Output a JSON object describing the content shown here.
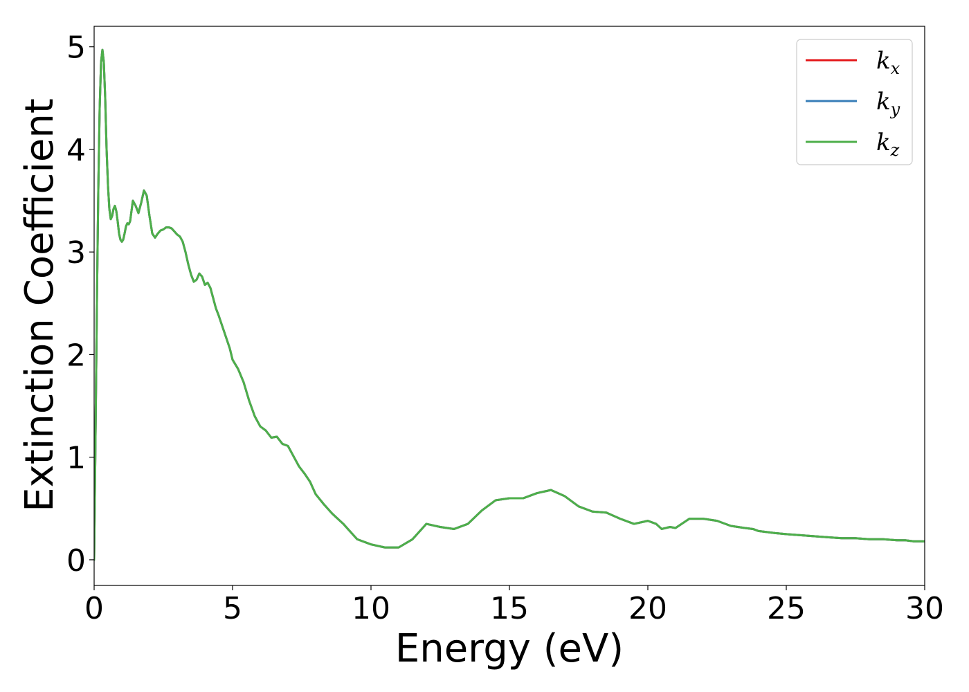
{
  "chart_data": {
    "type": "line",
    "title": "",
    "xlabel": "Energy (eV)",
    "ylabel": "Extinction Coefficient",
    "xlim": [
      0,
      30
    ],
    "ylim": [
      -0.25,
      5.2
    ],
    "xticks": [
      0,
      5,
      10,
      15,
      20,
      25,
      30
    ],
    "yticks": [
      0,
      1,
      2,
      3,
      4,
      5
    ],
    "grid": false,
    "legend_position": "top-right",
    "series": [
      {
        "name": "k",
        "subscript": "x",
        "color": "#e41a1c",
        "x": [
          0,
          0.05,
          0.1,
          0.15,
          0.2,
          0.25,
          0.3,
          0.35,
          0.4,
          0.45,
          0.5,
          0.55,
          0.6,
          0.65,
          0.7,
          0.75,
          0.8,
          0.85,
          0.9,
          0.95,
          1.0,
          1.05,
          1.1,
          1.15,
          1.2,
          1.25,
          1.3,
          1.35,
          1.4,
          1.5,
          1.6,
          1.7,
          1.8,
          1.9,
          2.0,
          2.1,
          2.2,
          2.3,
          2.4,
          2.5,
          2.6,
          2.7,
          2.8,
          2.9,
          3.0,
          3.1,
          3.2,
          3.3,
          3.4,
          3.5,
          3.6,
          3.7,
          3.8,
          3.9,
          4.0,
          4.1,
          4.2,
          4.3,
          4.4,
          4.5,
          4.6,
          4.7,
          4.8,
          4.9,
          5.0,
          5.2,
          5.4,
          5.6,
          5.8,
          6.0,
          6.2,
          6.4,
          6.6,
          6.8,
          7.0,
          7.2,
          7.4,
          7.6,
          7.8,
          8.0,
          8.3,
          8.6,
          9.0,
          9.5,
          10.0,
          10.5,
          11.0,
          11.5,
          12.0,
          12.5,
          13.0,
          13.5,
          14.0,
          14.5,
          15.0,
          15.5,
          16.0,
          16.5,
          17.0,
          17.5,
          18.0,
          18.5,
          19.0,
          19.5,
          20.0,
          20.3,
          20.5,
          20.8,
          21.0,
          21.5,
          22.0,
          22.5,
          23.0,
          23.5,
          23.8,
          24.0,
          24.3,
          24.6,
          25.0,
          25.5,
          26.0,
          26.5,
          27.0,
          27.5,
          28.0,
          28.5,
          29.0,
          29.3,
          29.6,
          30.0
        ],
        "values": [
          0.0,
          1.2,
          2.5,
          3.6,
          4.4,
          4.85,
          4.97,
          4.85,
          4.5,
          4.0,
          3.65,
          3.42,
          3.32,
          3.35,
          3.42,
          3.45,
          3.4,
          3.3,
          3.18,
          3.12,
          3.1,
          3.12,
          3.18,
          3.25,
          3.28,
          3.27,
          3.3,
          3.4,
          3.5,
          3.45,
          3.38,
          3.48,
          3.6,
          3.55,
          3.35,
          3.18,
          3.14,
          3.18,
          3.21,
          3.22,
          3.24,
          3.24,
          3.23,
          3.2,
          3.17,
          3.15,
          3.1,
          3.0,
          2.88,
          2.78,
          2.71,
          2.73,
          2.79,
          2.76,
          2.68,
          2.7,
          2.65,
          2.55,
          2.45,
          2.38,
          2.3,
          2.22,
          2.14,
          2.06,
          1.95,
          1.86,
          1.73,
          1.55,
          1.4,
          1.3,
          1.26,
          1.19,
          1.2,
          1.13,
          1.11,
          1.01,
          0.91,
          0.84,
          0.76,
          0.64,
          0.54,
          0.45,
          0.35,
          0.2,
          0.15,
          0.12,
          0.12,
          0.2,
          0.35,
          0.32,
          0.3,
          0.35,
          0.48,
          0.58,
          0.6,
          0.6,
          0.65,
          0.68,
          0.62,
          0.52,
          0.47,
          0.46,
          0.4,
          0.35,
          0.38,
          0.35,
          0.3,
          0.32,
          0.31,
          0.4,
          0.4,
          0.38,
          0.33,
          0.31,
          0.3,
          0.28,
          0.27,
          0.26,
          0.25,
          0.24,
          0.23,
          0.22,
          0.21,
          0.21,
          0.2,
          0.2,
          0.19,
          0.19,
          0.18,
          0.18
        ]
      },
      {
        "name": "k",
        "subscript": "y",
        "color": "#377eb8",
        "x": [
          0,
          0.05,
          0.1,
          0.15,
          0.2,
          0.25,
          0.3,
          0.35,
          0.4,
          0.45,
          0.5,
          0.55,
          0.6,
          0.65,
          0.7,
          0.75,
          0.8,
          0.85,
          0.9,
          0.95,
          1.0,
          1.05,
          1.1,
          1.15,
          1.2,
          1.25,
          1.3,
          1.35,
          1.4,
          1.5,
          1.6,
          1.7,
          1.8,
          1.9,
          2.0,
          2.1,
          2.2,
          2.3,
          2.4,
          2.5,
          2.6,
          2.7,
          2.8,
          2.9,
          3.0,
          3.1,
          3.2,
          3.3,
          3.4,
          3.5,
          3.6,
          3.7,
          3.8,
          3.9,
          4.0,
          4.1,
          4.2,
          4.3,
          4.4,
          4.5,
          4.6,
          4.7,
          4.8,
          4.9,
          5.0,
          5.2,
          5.4,
          5.6,
          5.8,
          6.0,
          6.2,
          6.4,
          6.6,
          6.8,
          7.0,
          7.2,
          7.4,
          7.6,
          7.8,
          8.0,
          8.3,
          8.6,
          9.0,
          9.5,
          10.0,
          10.5,
          11.0,
          11.5,
          12.0,
          12.5,
          13.0,
          13.5,
          14.0,
          14.5,
          15.0,
          15.5,
          16.0,
          16.5,
          17.0,
          17.5,
          18.0,
          18.5,
          19.0,
          19.5,
          20.0,
          20.3,
          20.5,
          20.8,
          21.0,
          21.5,
          22.0,
          22.5,
          23.0,
          23.5,
          23.8,
          24.0,
          24.3,
          24.6,
          25.0,
          25.5,
          26.0,
          26.5,
          27.0,
          27.5,
          28.0,
          28.5,
          29.0,
          29.3,
          29.6,
          30.0
        ],
        "values": [
          0.0,
          1.2,
          2.5,
          3.6,
          4.4,
          4.85,
          4.97,
          4.85,
          4.5,
          4.0,
          3.65,
          3.42,
          3.32,
          3.35,
          3.42,
          3.45,
          3.4,
          3.3,
          3.18,
          3.12,
          3.1,
          3.12,
          3.18,
          3.25,
          3.28,
          3.27,
          3.3,
          3.4,
          3.5,
          3.45,
          3.38,
          3.48,
          3.6,
          3.55,
          3.35,
          3.18,
          3.14,
          3.18,
          3.21,
          3.22,
          3.24,
          3.24,
          3.23,
          3.2,
          3.17,
          3.15,
          3.1,
          3.0,
          2.88,
          2.78,
          2.71,
          2.73,
          2.79,
          2.76,
          2.68,
          2.7,
          2.65,
          2.55,
          2.45,
          2.38,
          2.3,
          2.22,
          2.14,
          2.06,
          1.95,
          1.86,
          1.73,
          1.55,
          1.4,
          1.3,
          1.26,
          1.19,
          1.2,
          1.13,
          1.11,
          1.01,
          0.91,
          0.84,
          0.76,
          0.64,
          0.54,
          0.45,
          0.35,
          0.2,
          0.15,
          0.12,
          0.12,
          0.2,
          0.35,
          0.32,
          0.3,
          0.35,
          0.48,
          0.58,
          0.6,
          0.6,
          0.65,
          0.68,
          0.62,
          0.52,
          0.47,
          0.46,
          0.4,
          0.35,
          0.38,
          0.35,
          0.3,
          0.32,
          0.31,
          0.4,
          0.4,
          0.38,
          0.33,
          0.31,
          0.3,
          0.28,
          0.27,
          0.26,
          0.25,
          0.24,
          0.23,
          0.22,
          0.21,
          0.21,
          0.2,
          0.2,
          0.19,
          0.19,
          0.18,
          0.18
        ]
      },
      {
        "name": "k",
        "subscript": "z",
        "color": "#4daf4a",
        "x": [
          0,
          0.05,
          0.1,
          0.15,
          0.2,
          0.25,
          0.3,
          0.35,
          0.4,
          0.45,
          0.5,
          0.55,
          0.6,
          0.65,
          0.7,
          0.75,
          0.8,
          0.85,
          0.9,
          0.95,
          1.0,
          1.05,
          1.1,
          1.15,
          1.2,
          1.25,
          1.3,
          1.35,
          1.4,
          1.5,
          1.6,
          1.7,
          1.8,
          1.9,
          2.0,
          2.1,
          2.2,
          2.3,
          2.4,
          2.5,
          2.6,
          2.7,
          2.8,
          2.9,
          3.0,
          3.1,
          3.2,
          3.3,
          3.4,
          3.5,
          3.6,
          3.7,
          3.8,
          3.9,
          4.0,
          4.1,
          4.2,
          4.3,
          4.4,
          4.5,
          4.6,
          4.7,
          4.8,
          4.9,
          5.0,
          5.2,
          5.4,
          5.6,
          5.8,
          6.0,
          6.2,
          6.4,
          6.6,
          6.8,
          7.0,
          7.2,
          7.4,
          7.6,
          7.8,
          8.0,
          8.3,
          8.6,
          9.0,
          9.5,
          10.0,
          10.5,
          11.0,
          11.5,
          12.0,
          12.5,
          13.0,
          13.5,
          14.0,
          14.5,
          15.0,
          15.5,
          16.0,
          16.5,
          17.0,
          17.5,
          18.0,
          18.5,
          19.0,
          19.5,
          20.0,
          20.3,
          20.5,
          20.8,
          21.0,
          21.5,
          22.0,
          22.5,
          23.0,
          23.5,
          23.8,
          24.0,
          24.3,
          24.6,
          25.0,
          25.5,
          26.0,
          26.5,
          27.0,
          27.5,
          28.0,
          28.5,
          29.0,
          29.3,
          29.6,
          30.0
        ],
        "values": [
          0.0,
          1.2,
          2.5,
          3.6,
          4.4,
          4.85,
          4.97,
          4.85,
          4.5,
          4.0,
          3.65,
          3.42,
          3.32,
          3.35,
          3.42,
          3.45,
          3.4,
          3.3,
          3.18,
          3.12,
          3.1,
          3.12,
          3.18,
          3.25,
          3.28,
          3.27,
          3.3,
          3.4,
          3.5,
          3.45,
          3.38,
          3.48,
          3.6,
          3.55,
          3.35,
          3.18,
          3.14,
          3.18,
          3.21,
          3.22,
          3.24,
          3.24,
          3.23,
          3.2,
          3.17,
          3.15,
          3.1,
          3.0,
          2.88,
          2.78,
          2.71,
          2.73,
          2.79,
          2.76,
          2.68,
          2.7,
          2.65,
          2.55,
          2.45,
          2.38,
          2.3,
          2.22,
          2.14,
          2.06,
          1.95,
          1.86,
          1.73,
          1.55,
          1.4,
          1.3,
          1.26,
          1.19,
          1.2,
          1.13,
          1.11,
          1.01,
          0.91,
          0.84,
          0.76,
          0.64,
          0.54,
          0.45,
          0.35,
          0.2,
          0.15,
          0.12,
          0.12,
          0.2,
          0.35,
          0.32,
          0.3,
          0.35,
          0.48,
          0.58,
          0.6,
          0.6,
          0.65,
          0.68,
          0.62,
          0.52,
          0.47,
          0.46,
          0.4,
          0.35,
          0.38,
          0.35,
          0.3,
          0.32,
          0.31,
          0.4,
          0.4,
          0.38,
          0.33,
          0.31,
          0.3,
          0.28,
          0.27,
          0.26,
          0.25,
          0.24,
          0.23,
          0.22,
          0.21,
          0.21,
          0.2,
          0.2,
          0.19,
          0.19,
          0.18,
          0.18
        ]
      }
    ]
  }
}
